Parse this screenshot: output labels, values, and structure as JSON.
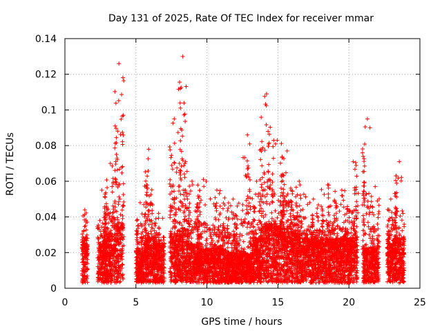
{
  "chart_data": {
    "type": "scatter",
    "title": "Day 131 of 2025, Rate Of TEC Index for receiver mmar",
    "xlabel": "GPS time / hours",
    "ylabel": "ROTI / TECUs",
    "xlim": [
      0,
      25
    ],
    "ylim": [
      0,
      0.14
    ],
    "xticks": [
      "0",
      "5",
      "10",
      "15",
      "20",
      "25"
    ],
    "xtick_values": [
      0,
      5,
      10,
      15,
      20,
      25
    ],
    "yticks": [
      "0",
      "0.02",
      "0.04",
      "0.06",
      "0.08",
      "0.1",
      "0.12",
      "0.14"
    ],
    "ytick_values": [
      0,
      0.02,
      0.04,
      0.06,
      0.08,
      0.1,
      0.12,
      0.14
    ],
    "grid": true,
    "marker": "plus",
    "color": "#ff0000",
    "series": [
      {
        "name": "ROTI",
        "description": "Dense per-satellite ROTI samples; clusters summarized as time windows with typical and peak values",
        "segments": [
          {
            "x": [
              1.2,
              1.6
            ],
            "typ": 0.018,
            "max": 0.044
          },
          {
            "x": [
              2.3,
              2.9
            ],
            "typ": 0.016,
            "max": 0.055
          },
          {
            "x": [
              2.9,
              3.5
            ],
            "typ": 0.02,
            "max": 0.07
          },
          {
            "x": [
              3.5,
              4.1
            ],
            "typ": 0.024,
            "max": 0.126
          },
          {
            "x": [
              4.1,
              5.0
            ],
            "typ": 0.0,
            "max": 0.0
          },
          {
            "x": [
              5.0,
              5.6
            ],
            "typ": 0.014,
            "max": 0.048
          },
          {
            "x": [
              5.6,
              6.2
            ],
            "typ": 0.018,
            "max": 0.078
          },
          {
            "x": [
              6.2,
              7.0
            ],
            "typ": 0.016,
            "max": 0.042
          },
          {
            "x": [
              7.4,
              8.0
            ],
            "typ": 0.02,
            "max": 0.095
          },
          {
            "x": [
              8.0,
              8.6
            ],
            "typ": 0.022,
            "max": 0.13
          },
          {
            "x": [
              8.6,
              9.3
            ],
            "typ": 0.016,
            "max": 0.06
          },
          {
            "x": [
              9.3,
              10.2
            ],
            "typ": 0.014,
            "max": 0.061
          },
          {
            "x": [
              10.2,
              11.2
            ],
            "typ": 0.014,
            "max": 0.055
          },
          {
            "x": [
              11.2,
              12.5
            ],
            "typ": 0.012,
            "max": 0.05
          },
          {
            "x": [
              12.5,
              13.2
            ],
            "typ": 0.012,
            "max": 0.086
          },
          {
            "x": [
              13.2,
              13.8
            ],
            "typ": 0.018,
            "max": 0.06
          },
          {
            "x": [
              13.8,
              14.6
            ],
            "typ": 0.024,
            "max": 0.109
          },
          {
            "x": [
              14.6,
              15.3
            ],
            "typ": 0.024,
            "max": 0.083
          },
          {
            "x": [
              15.3,
              16.0
            ],
            "typ": 0.022,
            "max": 0.077
          },
          {
            "x": [
              16.0,
              17.0
            ],
            "typ": 0.02,
            "max": 0.06
          },
          {
            "x": [
              17.0,
              18.0
            ],
            "typ": 0.018,
            "max": 0.05
          },
          {
            "x": [
              18.0,
              19.0
            ],
            "typ": 0.018,
            "max": 0.058
          },
          {
            "x": [
              19.0,
              20.0
            ],
            "typ": 0.018,
            "max": 0.055
          },
          {
            "x": [
              20.0,
              20.6
            ],
            "typ": 0.018,
            "max": 0.071
          },
          {
            "x": [
              21.0,
              21.6
            ],
            "typ": 0.014,
            "max": 0.095
          },
          {
            "x": [
              21.6,
              22.1
            ],
            "typ": 0.014,
            "max": 0.057
          },
          {
            "x": [
              22.7,
              23.2
            ],
            "typ": 0.016,
            "max": 0.05
          },
          {
            "x": [
              23.2,
              23.9
            ],
            "typ": 0.018,
            "max": 0.071
          }
        ]
      }
    ]
  }
}
